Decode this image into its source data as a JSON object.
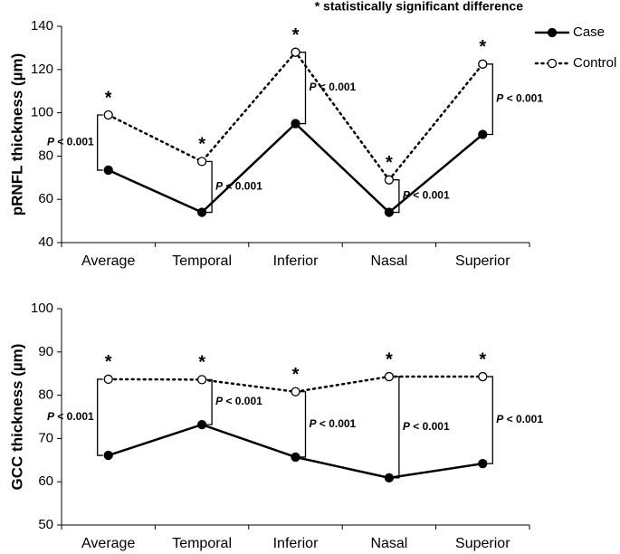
{
  "chart_data": [
    {
      "type": "line",
      "note": "* statistically significant difference",
      "ylabel": "pRNFL thickness (µm)",
      "categories": [
        "Average",
        "Temporal",
        "Inferior",
        "Nasal",
        "Superior"
      ],
      "series": [
        {
          "name": "Case",
          "color": "#000000",
          "line_style": "solid",
          "marker_fill": "#000000",
          "values": [
            73.5,
            54,
            95,
            54,
            90
          ]
        },
        {
          "name": "Control",
          "color": "#000000",
          "line_style": "dotted",
          "marker_fill": "#ffffff",
          "values": [
            99,
            77.5,
            128,
            69,
            122.5
          ]
        }
      ],
      "significance_markers": [
        "*",
        "*",
        "*",
        "*",
        "*"
      ],
      "p_labels": [
        "P < 0.001",
        "P < 0.001",
        "P < 0.001",
        "P < 0.001",
        "P < 0.001"
      ],
      "ylim": [
        40,
        140
      ],
      "yticks": [
        40,
        60,
        80,
        100,
        120,
        140
      ],
      "legend": "top-right"
    },
    {
      "type": "line",
      "ylabel": "GCC thickness (µm)",
      "categories": [
        "Average",
        "Temporal",
        "Inferior",
        "Nasal",
        "Superior"
      ],
      "series": [
        {
          "color": "#000000",
          "line_style": "solid",
          "marker_fill": "#000000",
          "values": [
            66.1,
            73.2,
            65.7,
            60.9,
            64.2
          ]
        },
        {
          "color": "#000000",
          "line_style": "dotted",
          "marker_fill": "#ffffff",
          "values": [
            83.7,
            83.6,
            80.8,
            84.3,
            84.3
          ]
        }
      ],
      "significance_markers": [
        "*",
        "*",
        "*",
        "*",
        "*"
      ],
      "p_labels": [
        "P < 0.001",
        "P < 0.001",
        "P < 0.001",
        "P < 0.001",
        "P < 0.001"
      ],
      "ylim": [
        50,
        100
      ],
      "yticks": [
        50,
        60,
        70,
        80,
        90,
        100
      ]
    }
  ]
}
